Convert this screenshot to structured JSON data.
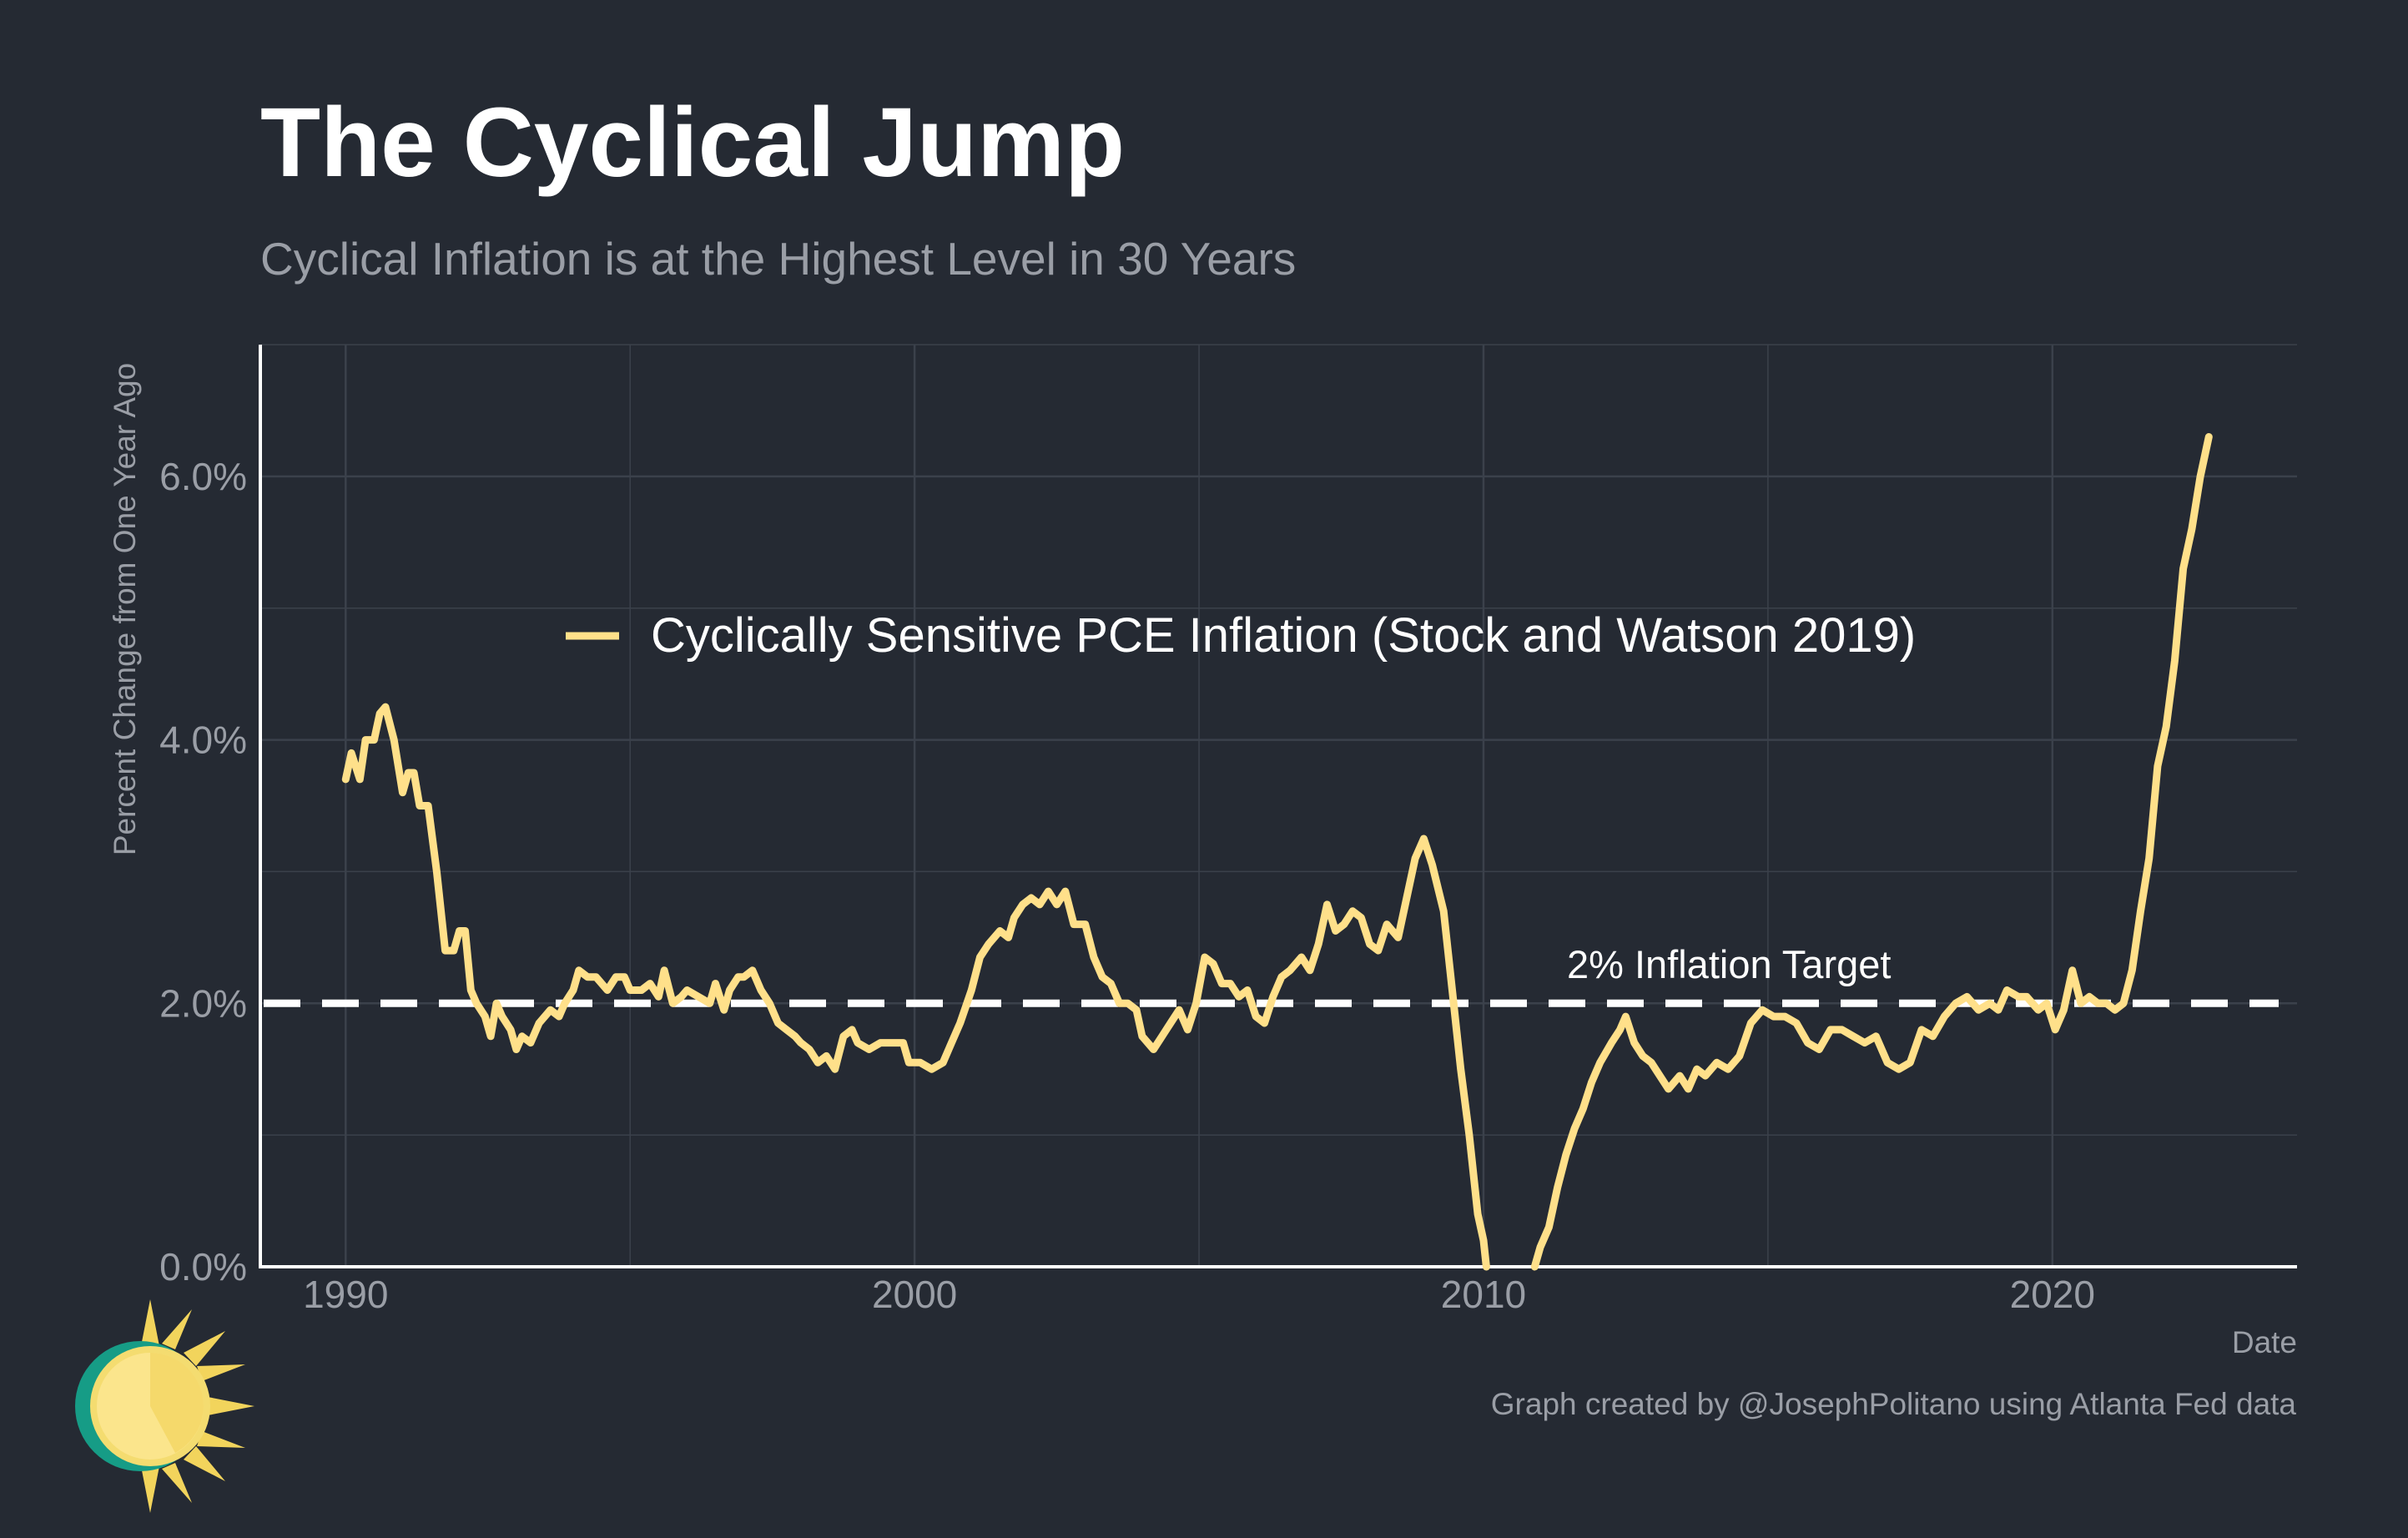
{
  "title": "The Cyclical Jump",
  "subtitle": "Cyclical Inflation is at the Highest Level in 30 Years",
  "caption": "Graph created by @JosephPolitano using Atlanta Fed data",
  "logo_icon": "sun-logo-icon",
  "colors": {
    "background": "#252a33",
    "series": "#ffe08a",
    "target_line": "#ffffff",
    "grid": "#3b414b",
    "text_muted": "#9a9ea6"
  },
  "chart_data": {
    "type": "line",
    "xlabel": "Date",
    "ylabel": "Percent Change from One Year Ago",
    "xlim": [
      1988.5,
      2024.3
    ],
    "ylim": [
      0,
      7.0
    ],
    "x_ticks": [
      1990,
      2000,
      2010,
      2020
    ],
    "x_tick_labels": [
      "1990",
      "2000",
      "2010",
      "2020"
    ],
    "y_ticks": [
      0,
      2,
      4,
      6
    ],
    "y_tick_labels": [
      "0.0%",
      "2.0%",
      "4.0%",
      "6.0%"
    ],
    "grid": true,
    "legend": {
      "position": "top-center",
      "entries": [
        "Cyclically Sensitive PCE Inflation (Stock and Watson 2019)"
      ]
    },
    "reference_line": {
      "y": 2.0,
      "style": "dashed",
      "label": "2% Inflation Target"
    },
    "series": [
      {
        "name": "Cyclically Sensitive PCE Inflation (Stock and Watson 2019)",
        "points": [
          [
            1990.0,
            3.7
          ],
          [
            1990.1,
            3.9
          ],
          [
            1990.25,
            3.7
          ],
          [
            1990.35,
            4.0
          ],
          [
            1990.5,
            4.0
          ],
          [
            1990.6,
            4.2
          ],
          [
            1990.7,
            4.25
          ],
          [
            1990.85,
            4.0
          ],
          [
            1991.0,
            3.6
          ],
          [
            1991.1,
            3.75
          ],
          [
            1991.2,
            3.75
          ],
          [
            1991.3,
            3.5
          ],
          [
            1991.45,
            3.5
          ],
          [
            1991.6,
            3.0
          ],
          [
            1991.75,
            2.4
          ],
          [
            1991.9,
            2.4
          ],
          [
            1992.0,
            2.55
          ],
          [
            1992.1,
            2.55
          ],
          [
            1992.2,
            2.1
          ],
          [
            1992.3,
            2.0
          ],
          [
            1992.45,
            1.9
          ],
          [
            1992.55,
            1.75
          ],
          [
            1992.65,
            2.0
          ],
          [
            1992.75,
            1.9
          ],
          [
            1992.9,
            1.8
          ],
          [
            1993.0,
            1.65
          ],
          [
            1993.1,
            1.75
          ],
          [
            1993.25,
            1.7
          ],
          [
            1993.4,
            1.85
          ],
          [
            1993.6,
            1.95
          ],
          [
            1993.75,
            1.9
          ],
          [
            1993.85,
            2.0
          ],
          [
            1994.0,
            2.1
          ],
          [
            1994.1,
            2.25
          ],
          [
            1994.25,
            2.2
          ],
          [
            1994.4,
            2.2
          ],
          [
            1994.6,
            2.1
          ],
          [
            1994.75,
            2.2
          ],
          [
            1994.9,
            2.2
          ],
          [
            1995.0,
            2.1
          ],
          [
            1995.2,
            2.1
          ],
          [
            1995.35,
            2.15
          ],
          [
            1995.5,
            2.05
          ],
          [
            1995.6,
            2.25
          ],
          [
            1995.75,
            2.0
          ],
          [
            1995.9,
            2.05
          ],
          [
            1996.0,
            2.1
          ],
          [
            1996.2,
            2.05
          ],
          [
            1996.4,
            2.0
          ],
          [
            1996.5,
            2.15
          ],
          [
            1996.65,
            1.95
          ],
          [
            1996.75,
            2.1
          ],
          [
            1996.9,
            2.2
          ],
          [
            1997.0,
            2.2
          ],
          [
            1997.15,
            2.25
          ],
          [
            1997.3,
            2.1
          ],
          [
            1997.45,
            2.0
          ],
          [
            1997.6,
            1.85
          ],
          [
            1997.75,
            1.8
          ],
          [
            1997.9,
            1.75
          ],
          [
            1998.0,
            1.7
          ],
          [
            1998.15,
            1.65
          ],
          [
            1998.3,
            1.55
          ],
          [
            1998.45,
            1.6
          ],
          [
            1998.6,
            1.5
          ],
          [
            1998.75,
            1.75
          ],
          [
            1998.9,
            1.8
          ],
          [
            1999.0,
            1.7
          ],
          [
            1999.2,
            1.65
          ],
          [
            1999.4,
            1.7
          ],
          [
            1999.6,
            1.7
          ],
          [
            1999.8,
            1.7
          ],
          [
            1999.9,
            1.55
          ],
          [
            2000.1,
            1.55
          ],
          [
            2000.3,
            1.5
          ],
          [
            2000.5,
            1.55
          ],
          [
            2000.65,
            1.7
          ],
          [
            2000.8,
            1.85
          ],
          [
            2001.0,
            2.1
          ],
          [
            2001.15,
            2.35
          ],
          [
            2001.3,
            2.45
          ],
          [
            2001.5,
            2.55
          ],
          [
            2001.65,
            2.5
          ],
          [
            2001.75,
            2.65
          ],
          [
            2001.9,
            2.75
          ],
          [
            2002.05,
            2.8
          ],
          [
            2002.2,
            2.75
          ],
          [
            2002.35,
            2.85
          ],
          [
            2002.5,
            2.75
          ],
          [
            2002.65,
            2.85
          ],
          [
            2002.8,
            2.6
          ],
          [
            2003.0,
            2.6
          ],
          [
            2003.15,
            2.35
          ],
          [
            2003.3,
            2.2
          ],
          [
            2003.45,
            2.15
          ],
          [
            2003.6,
            2.0
          ],
          [
            2003.75,
            2.0
          ],
          [
            2003.9,
            1.95
          ],
          [
            2004.0,
            1.75
          ],
          [
            2004.2,
            1.65
          ],
          [
            2004.35,
            1.75
          ],
          [
            2004.5,
            1.85
          ],
          [
            2004.65,
            1.95
          ],
          [
            2004.8,
            1.8
          ],
          [
            2004.95,
            2.0
          ],
          [
            2005.1,
            2.35
          ],
          [
            2005.25,
            2.3
          ],
          [
            2005.4,
            2.15
          ],
          [
            2005.55,
            2.15
          ],
          [
            2005.7,
            2.05
          ],
          [
            2005.85,
            2.1
          ],
          [
            2006.0,
            1.9
          ],
          [
            2006.15,
            1.85
          ],
          [
            2006.3,
            2.05
          ],
          [
            2006.45,
            2.2
          ],
          [
            2006.6,
            2.25
          ],
          [
            2006.8,
            2.35
          ],
          [
            2006.95,
            2.25
          ],
          [
            2007.1,
            2.45
          ],
          [
            2007.25,
            2.75
          ],
          [
            2007.4,
            2.55
          ],
          [
            2007.55,
            2.6
          ],
          [
            2007.7,
            2.7
          ],
          [
            2007.85,
            2.65
          ],
          [
            2008.0,
            2.45
          ],
          [
            2008.15,
            2.4
          ],
          [
            2008.3,
            2.6
          ],
          [
            2008.5,
            2.5
          ],
          [
            2008.65,
            2.8
          ],
          [
            2008.8,
            3.1
          ],
          [
            2008.95,
            3.25
          ],
          [
            2009.1,
            3.05
          ],
          [
            2009.3,
            2.7
          ],
          [
            2009.45,
            2.1
          ],
          [
            2009.6,
            1.5
          ],
          [
            2009.75,
            1.0
          ],
          [
            2009.9,
            0.4
          ],
          [
            2010.0,
            0.2
          ],
          [
            2010.05,
            0.0
          ]
        ]
      },
      {
        "name": "Cyclically Sensitive PCE Inflation (Stock and Watson 2019)",
        "points": [
          [
            2010.9,
            0.0
          ],
          [
            2011.0,
            0.15
          ],
          [
            2011.15,
            0.3
          ],
          [
            2011.3,
            0.6
          ],
          [
            2011.45,
            0.85
          ],
          [
            2011.6,
            1.05
          ],
          [
            2011.75,
            1.2
          ],
          [
            2011.9,
            1.4
          ],
          [
            2012.05,
            1.55
          ],
          [
            2012.25,
            1.7
          ],
          [
            2012.4,
            1.8
          ],
          [
            2012.5,
            1.9
          ],
          [
            2012.65,
            1.7
          ],
          [
            2012.8,
            1.6
          ],
          [
            2012.95,
            1.55
          ],
          [
            2013.1,
            1.45
          ],
          [
            2013.25,
            1.35
          ],
          [
            2013.45,
            1.45
          ],
          [
            2013.6,
            1.35
          ],
          [
            2013.75,
            1.5
          ],
          [
            2013.9,
            1.45
          ],
          [
            2014.1,
            1.55
          ],
          [
            2014.3,
            1.5
          ],
          [
            2014.5,
            1.6
          ],
          [
            2014.7,
            1.85
          ],
          [
            2014.9,
            1.95
          ],
          [
            2015.1,
            1.9
          ],
          [
            2015.3,
            1.9
          ],
          [
            2015.5,
            1.85
          ],
          [
            2015.7,
            1.7
          ],
          [
            2015.9,
            1.65
          ],
          [
            2016.1,
            1.8
          ],
          [
            2016.3,
            1.8
          ],
          [
            2016.5,
            1.75
          ],
          [
            2016.7,
            1.7
          ],
          [
            2016.9,
            1.75
          ],
          [
            2017.1,
            1.55
          ],
          [
            2017.3,
            1.5
          ],
          [
            2017.5,
            1.55
          ],
          [
            2017.7,
            1.8
          ],
          [
            2017.9,
            1.75
          ],
          [
            2018.1,
            1.9
          ],
          [
            2018.3,
            2.0
          ],
          [
            2018.5,
            2.05
          ],
          [
            2018.7,
            1.95
          ],
          [
            2018.9,
            2.0
          ],
          [
            2019.05,
            1.95
          ],
          [
            2019.2,
            2.1
          ],
          [
            2019.4,
            2.05
          ],
          [
            2019.55,
            2.05
          ],
          [
            2019.75,
            1.95
          ],
          [
            2019.9,
            2.0
          ],
          [
            2020.05,
            1.8
          ],
          [
            2020.2,
            1.95
          ],
          [
            2020.35,
            2.25
          ],
          [
            2020.5,
            2.0
          ],
          [
            2020.65,
            2.05
          ],
          [
            2020.8,
            2.0
          ],
          [
            2020.95,
            2.0
          ],
          [
            2021.1,
            1.95
          ],
          [
            2021.25,
            2.0
          ],
          [
            2021.4,
            2.25
          ],
          [
            2021.55,
            2.7
          ],
          [
            2021.7,
            3.1
          ],
          [
            2021.85,
            3.8
          ],
          [
            2022.0,
            4.1
          ],
          [
            2022.15,
            4.6
          ],
          [
            2022.3,
            5.3
          ],
          [
            2022.45,
            5.6
          ],
          [
            2022.6,
            6.0
          ],
          [
            2022.75,
            6.3
          ]
        ]
      }
    ]
  }
}
